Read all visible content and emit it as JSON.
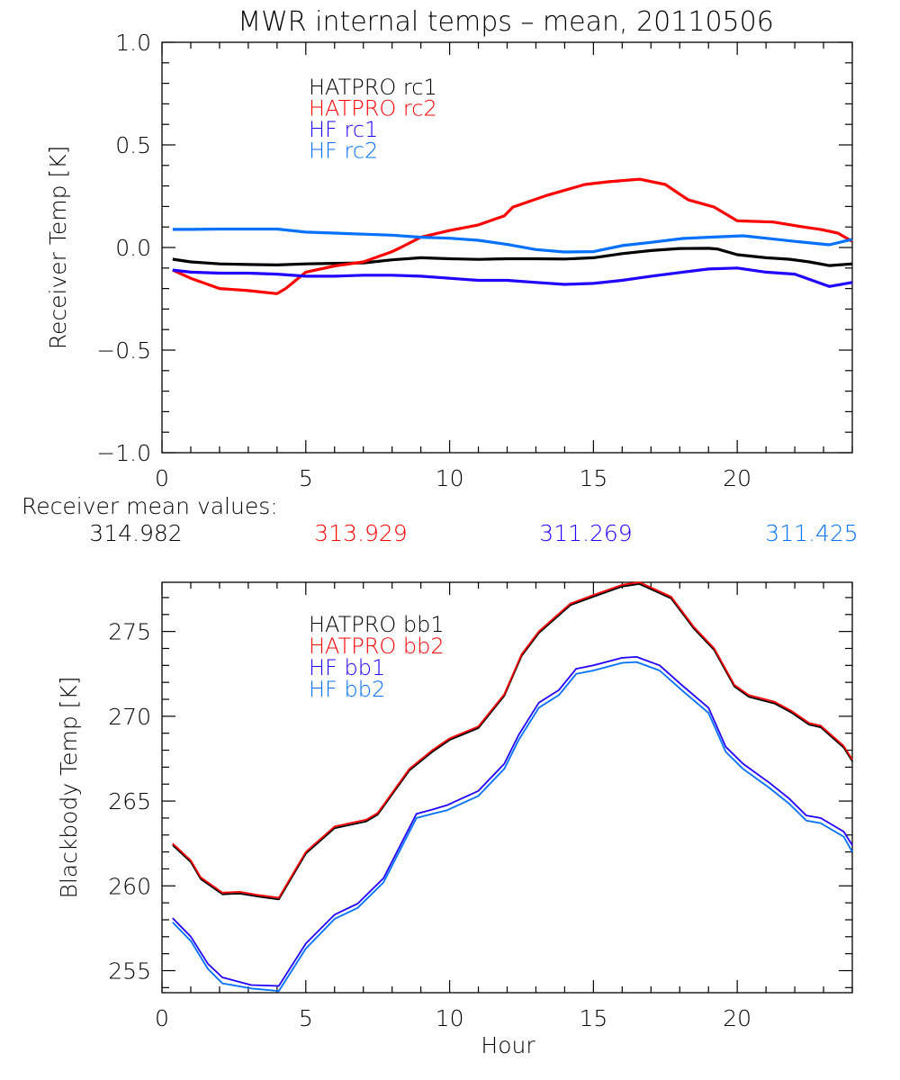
{
  "title": "MWR internal temps – mean, 20110506",
  "colors": {
    "hatpro1": "#000000",
    "hatpro2": "#ff0000",
    "hf1": "#2000ff",
    "hf2": "#0070ff",
    "axis": "#000000"
  },
  "means": {
    "label": "Receiver mean values:",
    "values": [
      {
        "text": "314.982",
        "color_key": "hatpro1"
      },
      {
        "text": "313.929",
        "color_key": "hatpro2"
      },
      {
        "text": "311.269",
        "color_key": "hf1"
      },
      {
        "text": "311.425",
        "color_key": "hf2"
      }
    ]
  },
  "chart_data": [
    {
      "type": "line",
      "title": "MWR internal temps – mean, 20110506",
      "xlabel": "",
      "ylabel": "Receiver Temp [K]",
      "xlim": [
        0,
        24
      ],
      "ylim": [
        -1.0,
        1.0
      ],
      "xticks": [
        0,
        5,
        10,
        15,
        20
      ],
      "xtick_labels": [
        "0",
        "5",
        "10",
        "15",
        "20"
      ],
      "x_minor_step": 1,
      "yticks": [
        -1.0,
        -0.5,
        0.0,
        0.5,
        1.0
      ],
      "ytick_labels": [
        "−1.0",
        "−0.5",
        "0.0",
        "0.5",
        "1.0"
      ],
      "y_minor_step": 0.1,
      "grid": false,
      "legend_position": "top-left",
      "series": [
        {
          "name": "HATPRO rc1",
          "color_key": "hatpro1",
          "x": [
            0.37,
            1,
            2,
            3,
            4,
            5,
            6,
            7,
            8,
            9,
            10,
            11,
            12,
            13,
            14,
            15,
            16,
            17,
            18,
            19,
            19.3,
            20,
            21,
            21.8,
            22.5,
            23.2,
            24
          ],
          "y": [
            -0.057,
            -0.07,
            -0.08,
            -0.083,
            -0.085,
            -0.08,
            -0.077,
            -0.075,
            -0.06,
            -0.05,
            -0.055,
            -0.058,
            -0.055,
            -0.055,
            -0.056,
            -0.05,
            -0.03,
            -0.015,
            -0.005,
            -0.004,
            -0.007,
            -0.035,
            -0.05,
            -0.057,
            -0.07,
            -0.088,
            -0.08
          ]
        },
        {
          "name": "HATPRO rc2",
          "color_key": "hatpro2",
          "x": [
            0.37,
            1,
            2,
            3,
            4,
            4.3,
            5,
            6,
            7,
            8,
            8.3,
            9,
            10,
            11,
            11.9,
            12.2,
            13.4,
            14.7,
            15.5,
            16.6,
            17.5,
            18.3,
            19.2,
            20,
            21.25,
            22.3,
            22.9,
            23.5,
            24
          ],
          "y": [
            -0.11,
            -0.15,
            -0.2,
            -0.21,
            -0.225,
            -0.2,
            -0.12,
            -0.09,
            -0.07,
            -0.02,
            0.0,
            0.05,
            0.083,
            0.11,
            0.154,
            0.197,
            0.255,
            0.307,
            0.32,
            0.333,
            0.307,
            0.232,
            0.197,
            0.13,
            0.124,
            0.1,
            0.088,
            0.07,
            0.03
          ]
        },
        {
          "name": "HF rc1",
          "color_key": "hf1",
          "x": [
            0.37,
            1,
            2,
            3,
            4,
            5,
            6,
            7,
            8,
            9,
            10,
            11,
            12,
            13,
            14,
            15,
            16,
            17,
            18.1,
            19,
            20,
            21,
            22,
            23.2,
            24
          ],
          "y": [
            -0.11,
            -0.12,
            -0.125,
            -0.125,
            -0.13,
            -0.14,
            -0.14,
            -0.135,
            -0.135,
            -0.14,
            -0.15,
            -0.16,
            -0.16,
            -0.17,
            -0.18,
            -0.175,
            -0.16,
            -0.14,
            -0.12,
            -0.105,
            -0.1,
            -0.12,
            -0.13,
            -0.19,
            -0.17
          ]
        },
        {
          "name": "HF rc2",
          "color_key": "hf2",
          "x": [
            0.37,
            1,
            2,
            3,
            4,
            5,
            6,
            7,
            8,
            9,
            10,
            11,
            12,
            13,
            14,
            15,
            16,
            17,
            18.1,
            19,
            20.2,
            21,
            22,
            23.2,
            24
          ],
          "y": [
            0.088,
            0.088,
            0.09,
            0.09,
            0.09,
            0.075,
            0.07,
            0.065,
            0.06,
            0.05,
            0.045,
            0.035,
            0.015,
            -0.01,
            -0.022,
            -0.02,
            0.009,
            0.025,
            0.044,
            0.05,
            0.057,
            0.045,
            0.03,
            0.013,
            0.04
          ]
        }
      ]
    },
    {
      "type": "line",
      "title": "",
      "xlabel": "Hour",
      "ylabel": "Blackbody Temp [K]",
      "xlim": [
        0,
        24
      ],
      "ylim": [
        253.7,
        277.9
      ],
      "xticks": [
        0,
        5,
        10,
        15,
        20
      ],
      "xtick_labels": [
        "0",
        "5",
        "10",
        "15",
        "20"
      ],
      "x_minor_step": 1,
      "yticks": [
        255,
        260,
        265,
        270,
        275
      ],
      "ytick_labels": [
        "255",
        "260",
        "265",
        "270",
        "275"
      ],
      "y_minor_step": 1,
      "grid": false,
      "legend_position": "top-left",
      "series": [
        {
          "name": "HATPRO bb1",
          "color_key": "hatpro1",
          "x": [
            0.37,
            1.0,
            1.35,
            2.1,
            2.7,
            3.4,
            4.06,
            5.0,
            6.0,
            7.1,
            7.5,
            8.6,
            9.4,
            10.0,
            11.0,
            11.9,
            12.5,
            13.1,
            14.2,
            15.0,
            16.0,
            16.6,
            17.7,
            18.5,
            19.2,
            19.9,
            20.4,
            21.3,
            21.9,
            22.5,
            22.9,
            23.7,
            24.0
          ],
          "y": [
            262.4,
            261.4,
            260.4,
            259.5,
            259.55,
            259.35,
            259.2,
            261.9,
            263.4,
            263.8,
            264.2,
            266.8,
            267.9,
            268.6,
            269.3,
            271.2,
            273.55,
            274.9,
            276.55,
            277.05,
            277.65,
            277.8,
            276.95,
            275.15,
            273.9,
            271.75,
            271.15,
            270.75,
            270.2,
            269.5,
            269.35,
            268.15,
            267.35
          ]
        },
        {
          "name": "HATPRO bb2",
          "color_key": "hatpro2",
          "x": [
            0.37,
            1.0,
            1.35,
            2.1,
            2.7,
            3.4,
            4.06,
            5.0,
            6.0,
            7.1,
            7.5,
            8.6,
            9.4,
            10.0,
            11.0,
            11.9,
            12.5,
            13.1,
            14.2,
            15.0,
            16.0,
            16.6,
            17.7,
            18.5,
            19.2,
            19.9,
            20.4,
            21.3,
            21.9,
            22.5,
            22.9,
            23.7,
            24.0
          ],
          "y": [
            262.5,
            261.5,
            260.5,
            259.6,
            259.65,
            259.45,
            259.3,
            262.0,
            263.5,
            263.9,
            264.3,
            266.9,
            268.0,
            268.7,
            269.4,
            271.3,
            273.65,
            275.0,
            276.65,
            277.15,
            277.75,
            277.9,
            277.05,
            275.25,
            274.0,
            271.85,
            271.25,
            270.85,
            270.3,
            269.6,
            269.45,
            268.25,
            267.45
          ]
        },
        {
          "name": "HF bb1",
          "color_key": "hf1",
          "x": [
            0.37,
            1.0,
            1.6,
            2.1,
            3.1,
            4.06,
            5.0,
            6.0,
            6.8,
            7.7,
            8.85,
            9.4,
            9.9,
            11.0,
            11.9,
            12.4,
            13.1,
            13.8,
            14.4,
            15.0,
            16.0,
            16.5,
            17.3,
            18.1,
            19.0,
            19.6,
            20.2,
            21.1,
            21.8,
            22.4,
            22.9,
            23.7,
            24.0
          ],
          "y": [
            258.1,
            257.0,
            255.4,
            254.6,
            254.15,
            254.1,
            256.6,
            258.3,
            258.95,
            260.45,
            264.25,
            264.5,
            264.75,
            265.6,
            267.2,
            268.9,
            270.8,
            271.55,
            272.8,
            273.0,
            273.45,
            273.5,
            273.0,
            271.8,
            270.5,
            268.2,
            267.2,
            266.1,
            265.15,
            264.15,
            264.0,
            263.2,
            262.4
          ]
        },
        {
          "name": "HF bb2",
          "color_key": "hf2",
          "x": [
            0.37,
            1.0,
            1.6,
            2.1,
            3.1,
            4.06,
            5.0,
            6.0,
            6.8,
            7.7,
            8.85,
            9.4,
            9.9,
            11.0,
            11.9,
            12.4,
            13.1,
            13.8,
            14.4,
            15.0,
            16.0,
            16.5,
            17.3,
            18.1,
            19.0,
            19.6,
            20.2,
            21.1,
            21.8,
            22.4,
            22.9,
            23.7,
            24.0
          ],
          "y": [
            257.85,
            256.75,
            255.1,
            254.25,
            253.95,
            253.8,
            256.3,
            258.05,
            258.7,
            260.2,
            264.0,
            264.25,
            264.45,
            265.3,
            266.9,
            268.6,
            270.5,
            271.25,
            272.5,
            272.7,
            273.15,
            273.2,
            272.7,
            271.5,
            270.2,
            267.9,
            266.9,
            265.8,
            264.85,
            263.85,
            263.7,
            262.9,
            262.0
          ]
        }
      ]
    }
  ]
}
